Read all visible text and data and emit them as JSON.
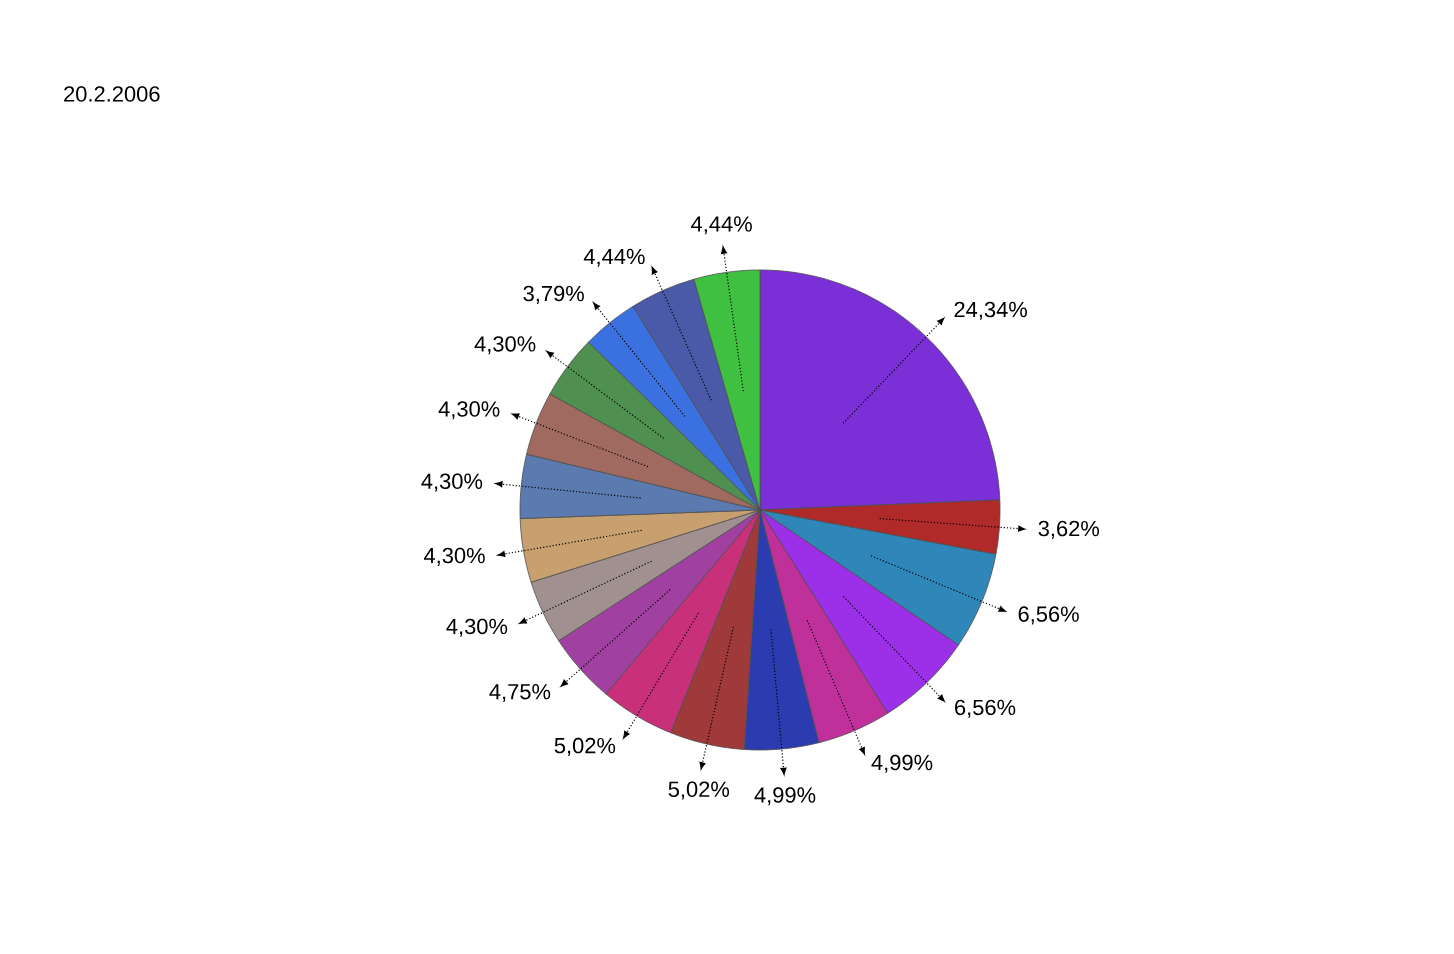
{
  "chart_data": {
    "type": "pie",
    "title": "20.2.2006",
    "categories": [
      null,
      null,
      null,
      null,
      null,
      null,
      null,
      null,
      null,
      null,
      null,
      null,
      null,
      null,
      null,
      null,
      null
    ],
    "values": [
      24.34,
      3.62,
      6.56,
      6.56,
      4.99,
      4.99,
      5.02,
      5.02,
      4.75,
      4.3,
      4.3,
      4.3,
      4.3,
      4.3,
      3.79,
      4.44,
      4.44
    ],
    "value_labels": [
      "24,34%",
      "3,62%",
      "6,56%",
      "6,56%",
      "4,99%",
      "4,99%",
      "5,02%",
      "5,02%",
      "4,75%",
      "4,30%",
      "4,30%",
      "4,30%",
      "4,30%",
      "4,30%",
      "3,79%",
      "4,44%",
      "4,44%"
    ],
    "colors": [
      "#7b2fd6",
      "#b02a2a",
      "#2f86b8",
      "#9b30e8",
      "#c0309a",
      "#2a3cb0",
      "#a03a3a",
      "#c8307a",
      "#a040a0",
      "#a09090",
      "#c8a070",
      "#5a7ab0",
      "#a06a60",
      "#4f9050",
      "#3a70e0",
      "#4a5aa8",
      "#40c040"
    ]
  }
}
